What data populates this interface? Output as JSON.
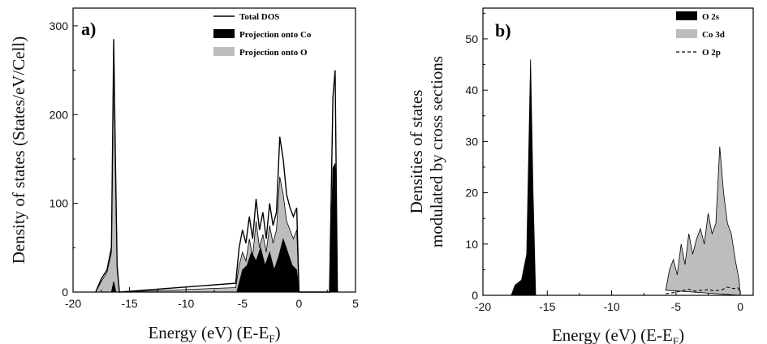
{
  "colors": {
    "black_fill": "#000000",
    "gray_fill": "#bdbdbd",
    "line": "#000000"
  },
  "chart_data": [
    {
      "type": "area",
      "panel_label": "a)",
      "xlabel": "Energy (eV) (E-E",
      "xlabel_sub": "F",
      "xlabel_tail": ")",
      "ylabel": "Density of states (States/eV/Cell)",
      "xlim": [
        -20,
        5
      ],
      "ylim": [
        0,
        320
      ],
      "xticks": [
        -20,
        -15,
        -10,
        -5,
        0,
        5
      ],
      "yticks": [
        0,
        100,
        200,
        300
      ],
      "legend_position": "top-right",
      "series": [
        {
          "name": "Total DOS",
          "style": "line",
          "x": [
            -18,
            -17.5,
            -17,
            -16.6,
            -16.4,
            -16.25,
            -16.1,
            -15.9,
            -5.6,
            -5.3,
            -5.0,
            -4.7,
            -4.4,
            -4.1,
            -3.8,
            -3.5,
            -3.2,
            -2.9,
            -2.6,
            -2.3,
            -2.0,
            -1.7,
            -1.4,
            -1.1,
            -0.8,
            -0.5,
            -0.2,
            0,
            2.7,
            3.0,
            3.2,
            3.4
          ],
          "y": [
            0,
            15,
            25,
            50,
            285,
            150,
            30,
            0,
            10,
            50,
            70,
            55,
            85,
            60,
            105,
            70,
            90,
            60,
            100,
            75,
            90,
            175,
            150,
            110,
            95,
            85,
            95,
            0,
            0,
            220,
            250,
            0
          ]
        },
        {
          "name": "Projection onto Co",
          "style": "fill-black",
          "x": [
            -16.6,
            -16.4,
            -16.2,
            -5.5,
            -5.0,
            -4.6,
            -4.2,
            -3.8,
            -3.4,
            -3.0,
            -2.6,
            -2.2,
            -1.8,
            -1.4,
            -1.0,
            -0.6,
            -0.2,
            0,
            2.7,
            3.0,
            3.2,
            3.4
          ],
          "y": [
            0,
            12,
            0,
            0,
            25,
            30,
            45,
            35,
            50,
            30,
            45,
            25,
            40,
            60,
            45,
            30,
            25,
            0,
            0,
            140,
            145,
            0
          ]
        },
        {
          "name": "Projection onto O",
          "style": "fill-gray",
          "x": [
            -18,
            -17.5,
            -17,
            -16.6,
            -16.4,
            -16.25,
            -16.1,
            -15.9,
            -5.6,
            -5.3,
            -5.0,
            -4.7,
            -4.4,
            -4.1,
            -3.8,
            -3.5,
            -3.2,
            -2.9,
            -2.6,
            -2.3,
            -2.0,
            -1.7,
            -1.4,
            -1.1,
            -0.8,
            -0.5,
            -0.2,
            0,
            2.7,
            3.0,
            3.2,
            3.4
          ],
          "y": [
            0,
            12,
            22,
            45,
            265,
            140,
            25,
            0,
            5,
            30,
            45,
            35,
            60,
            40,
            80,
            50,
            65,
            45,
            75,
            55,
            70,
            130,
            110,
            80,
            70,
            60,
            70,
            0,
            0,
            30,
            40,
            0
          ]
        }
      ]
    },
    {
      "type": "area",
      "panel_label": "b)",
      "xlabel": "Energy (eV) (E-E",
      "xlabel_sub": "F",
      "xlabel_tail": ")",
      "ylabel": "Densities of states",
      "ylabel_line2": "modulated by cross sections",
      "xlim": [
        -20,
        1
      ],
      "ylim": [
        0,
        56
      ],
      "xticks": [
        -20,
        -15,
        -10,
        -5,
        0
      ],
      "yticks": [
        0,
        10,
        20,
        30,
        40,
        50
      ],
      "legend_position": "top-right",
      "series": [
        {
          "name": "O 2s",
          "style": "fill-black",
          "x": [
            -17.8,
            -17.5,
            -17.0,
            -16.6,
            -16.3,
            -16.1,
            -16.0,
            -15.9
          ],
          "y": [
            0,
            2,
            3,
            8,
            46,
            20,
            10,
            0
          ]
        },
        {
          "name": "Co 3d",
          "style": "fill-gray",
          "x": [
            -5.8,
            -5.5,
            -5.2,
            -4.9,
            -4.6,
            -4.3,
            -4.0,
            -3.7,
            -3.4,
            -3.1,
            -2.8,
            -2.5,
            -2.2,
            -1.9,
            -1.6,
            -1.3,
            -1.0,
            -0.7,
            -0.4,
            -0.1,
            0
          ],
          "y": [
            1,
            5,
            7,
            4,
            10,
            6,
            12,
            8,
            11,
            13,
            10,
            16,
            12,
            14,
            29,
            20,
            14,
            12,
            7,
            3,
            0
          ]
        },
        {
          "name": "O 2p",
          "style": "dashed",
          "x": [
            -5.8,
            -5.0,
            -4.5,
            -4.0,
            -3.5,
            -3.0,
            -2.5,
            -2.0,
            -1.5,
            -1.0,
            -0.5,
            -0.2,
            0
          ],
          "y": [
            0.3,
            0.6,
            0.9,
            1.2,
            0.8,
            1.0,
            1.1,
            0.9,
            1.0,
            1.6,
            1.3,
            1.5,
            0.5
          ]
        }
      ]
    }
  ]
}
